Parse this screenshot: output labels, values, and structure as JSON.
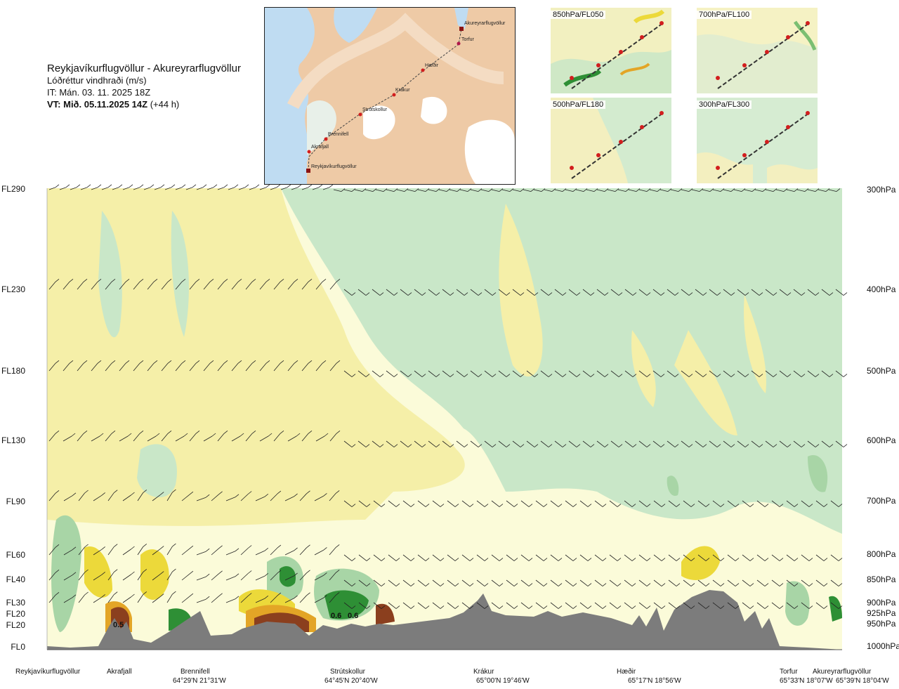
{
  "header": {
    "route": "Reykjavíkurflugvöllur - Akureyrarflugvöllur",
    "quantity": "Lóðréttur vindhraði (m/s)",
    "it": "IT: Mán. 03. 11. 2025 18Z",
    "vt_bold": "VT: Mið. 05.11.2025 14Z",
    "vt_offset": "(+44 h)"
  },
  "map": {
    "places": [
      "Akureyrarflugvöllur",
      "Torfur",
      "Hæðir",
      "Krákur",
      "Strútskollur",
      "Brennifell",
      "Akrafjall",
      "Reykjavíkurflugvöllur"
    ]
  },
  "thumbnails": [
    "850hPa/FL050",
    "700hPa/FL100",
    "500hPa/FL180",
    "300hPa/FL300"
  ],
  "chart_data": {
    "type": "heatmap",
    "title": "Lóðréttur vindhraði (m/s)",
    "y_left_labels": [
      "FL290",
      "FL230",
      "FL180",
      "FL130",
      "FL90",
      "FL60",
      "FL40",
      "FL30",
      "FL20",
      "FL20",
      "FL0"
    ],
    "y_right_labels": [
      "300hPa",
      "400hPa",
      "500hPa",
      "600hPa",
      "700hPa",
      "800hPa",
      "850hPa",
      "900hPa",
      "925hPa",
      "950hPa",
      "1000hPa"
    ],
    "x_locations": [
      {
        "name": "Reykjavíkurflugvöllur",
        "coord": ""
      },
      {
        "name": "Akrafjall",
        "coord": ""
      },
      {
        "name": "Brennifell",
        "coord": "64°29'N 21°31'W"
      },
      {
        "name": "Strútskollur",
        "coord": "64°45'N 20°40'W"
      },
      {
        "name": "Krákur",
        "coord": "65°00'N 19°46'W"
      },
      {
        "name": "Hæðir",
        "coord": "65°17'N 18°56'W"
      },
      {
        "name": "Torfur",
        "coord": "65°33'N 18°07'W"
      },
      {
        "name": "Akureyrarflugvöllur",
        "coord": "65°39'N 18°04'W"
      }
    ],
    "labels_in_plot": [
      "0.5",
      "0.6",
      "0.6"
    ],
    "colors": {
      "strong_sink": "#c9e7c8",
      "sink": "#a8d5a6",
      "strong_downdraft": "#2e8f35",
      "neutral": "#fbfbd9",
      "rise": "#f5efa8",
      "strong_rise": "#ecd93a",
      "orange": "#e3a526",
      "brown": "#8b3f1e",
      "terrain": "#7c7c7c"
    }
  }
}
